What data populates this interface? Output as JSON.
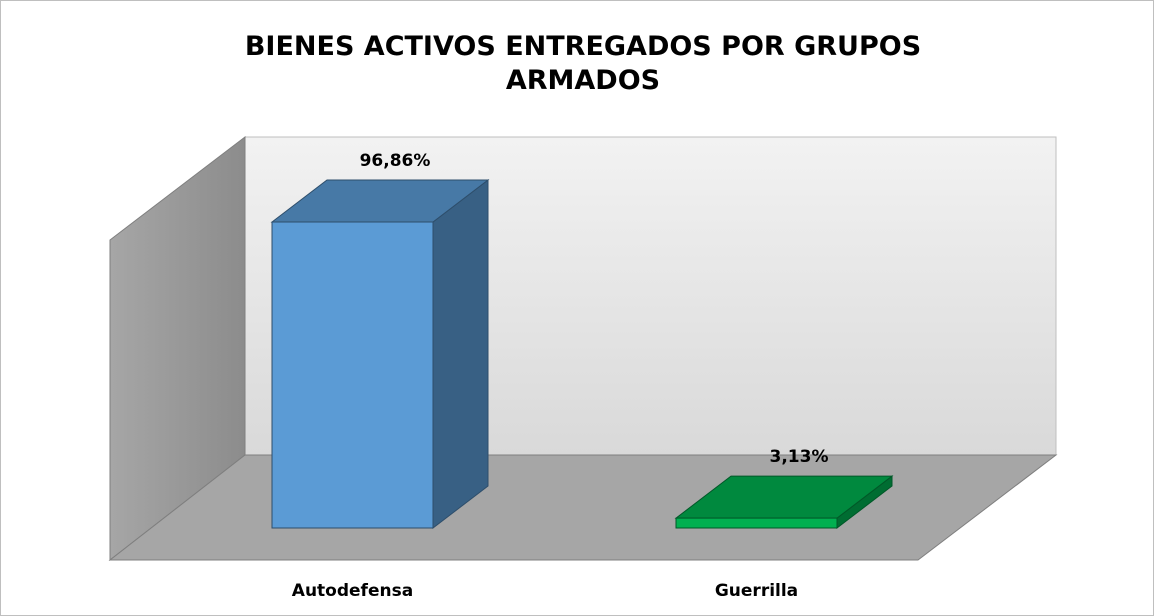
{
  "chart_data": {
    "type": "bar3d",
    "title": "BIENES ACTIVOS ENTREGADOS POR GRUPOS ARMADOS",
    "categories": [
      "Autodefensa",
      "Guerrilla"
    ],
    "values": [
      96.86,
      3.13
    ],
    "value_labels": [
      "96,86%",
      "3,13%"
    ],
    "colors": [
      "#5b9bd5",
      "#00b050"
    ]
  }
}
